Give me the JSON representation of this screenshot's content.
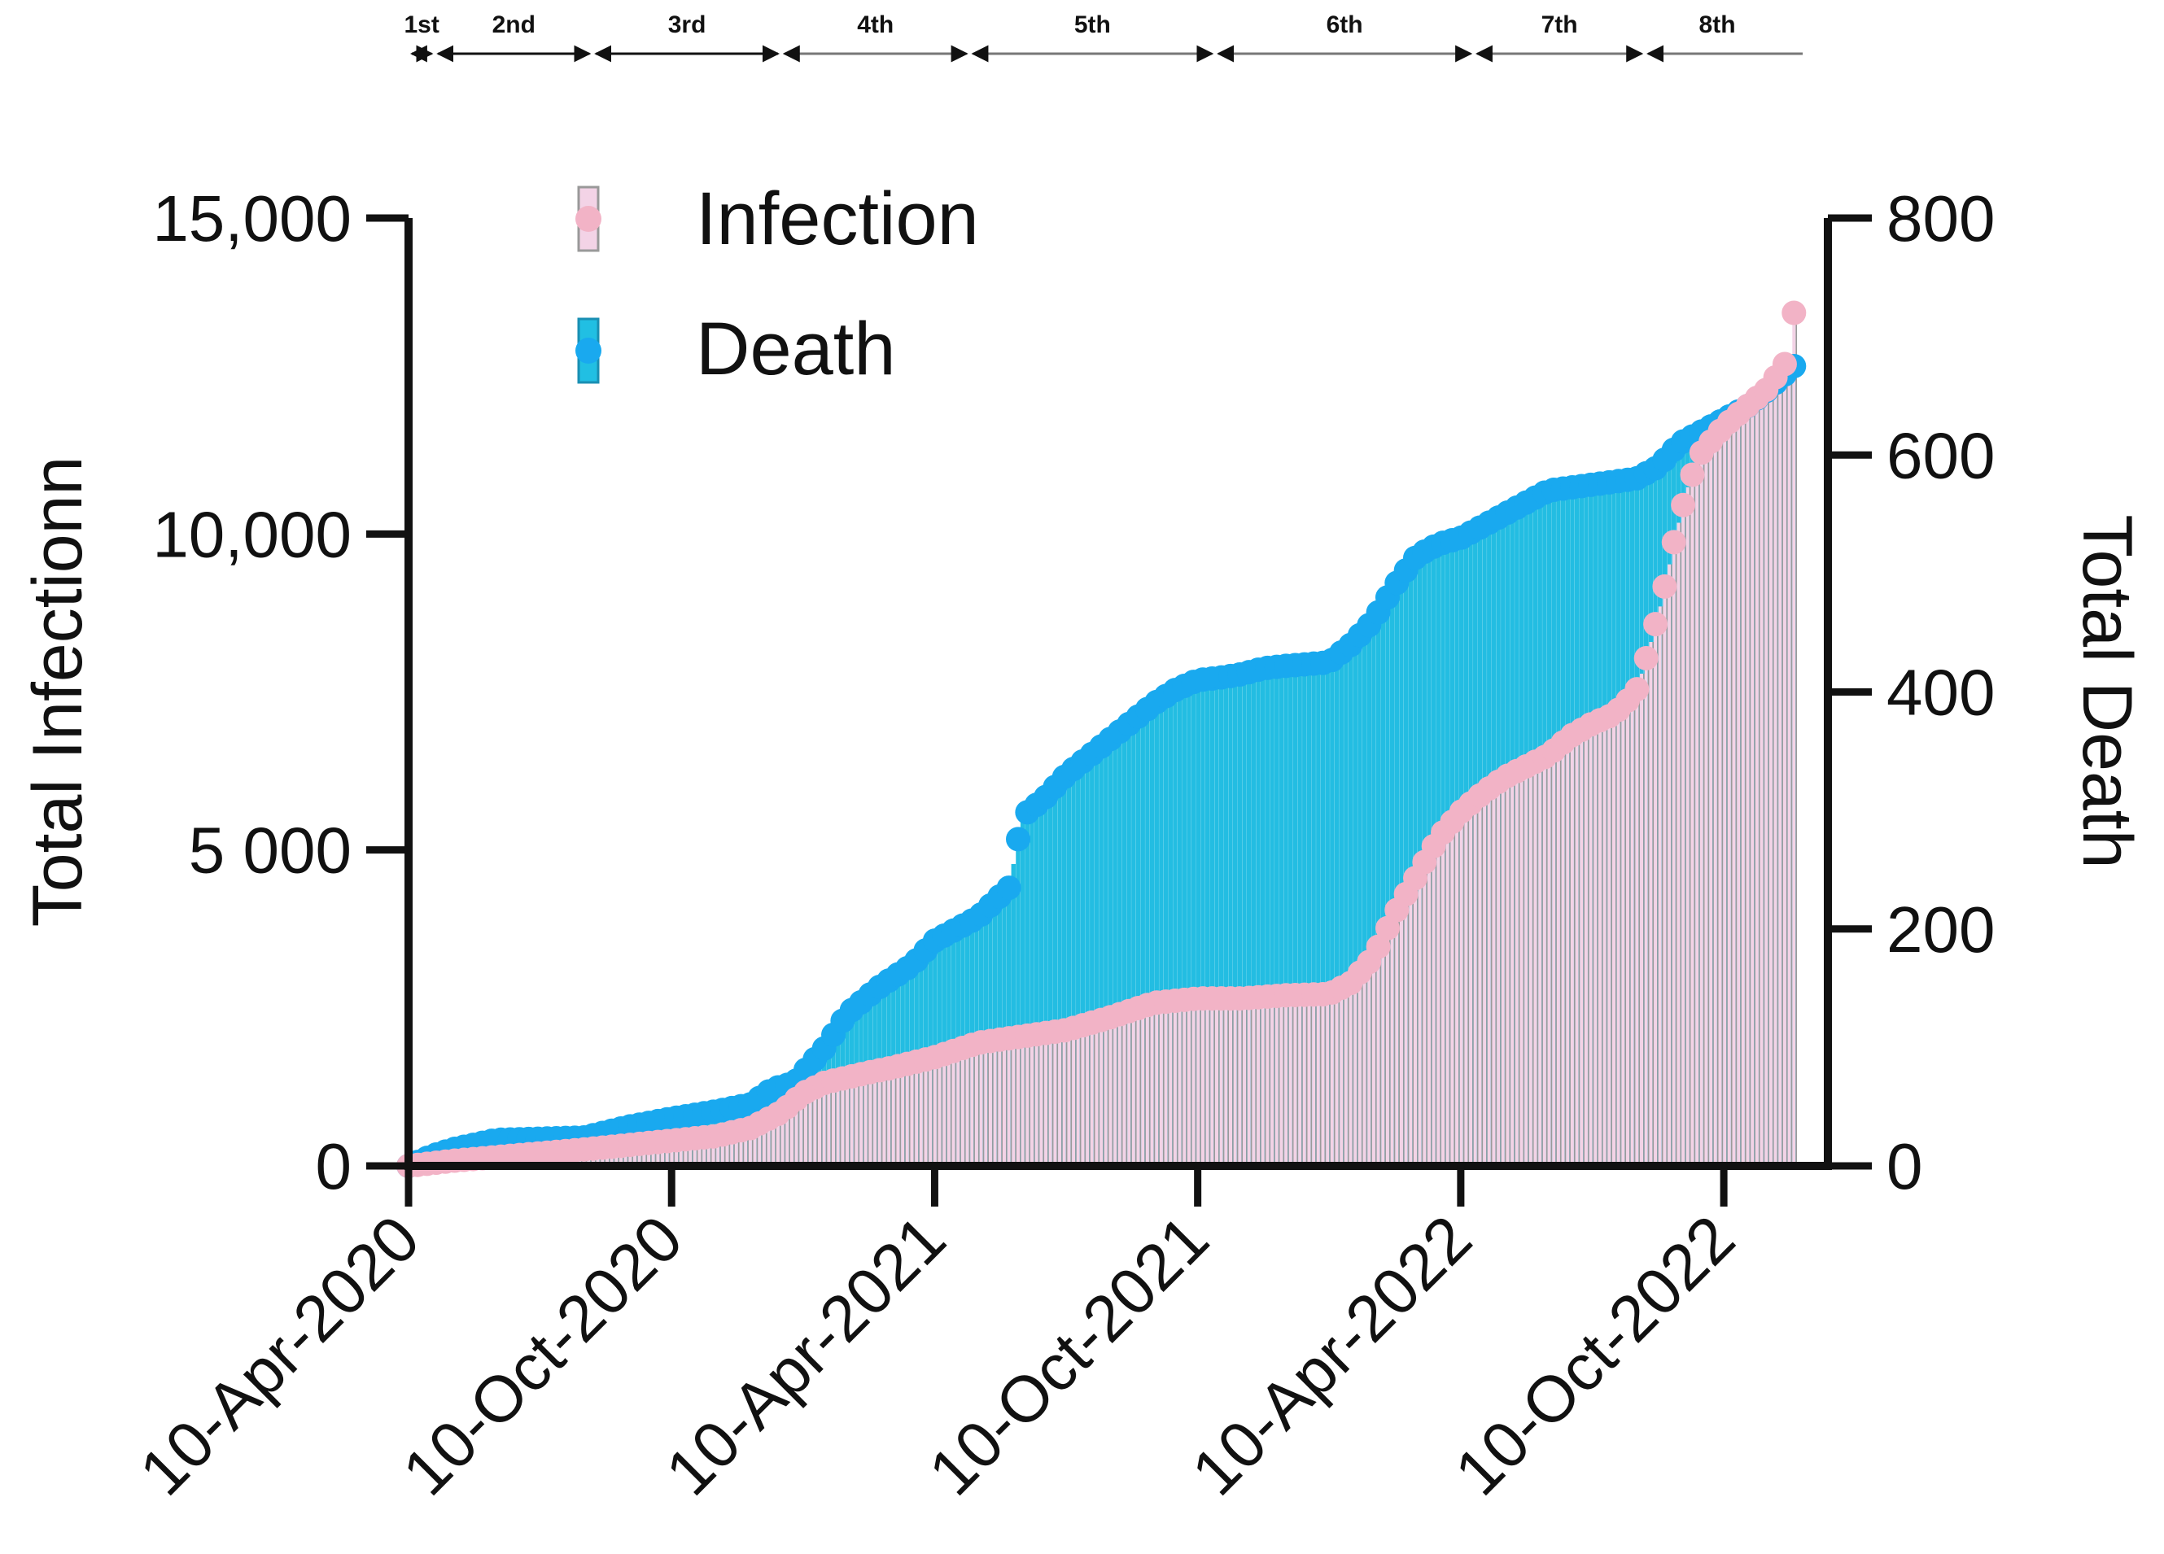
{
  "chart_data": {
    "type": "bar+scatter (dual axis, cumulative)",
    "title": "",
    "xlabel": "",
    "ylabel_left": "Total Infectionn",
    "ylabel_right": "Total Death",
    "ylim_left": [
      0,
      15000
    ],
    "ylim_right": [
      0,
      800
    ],
    "yticks_left": [
      {
        "value": 0,
        "label": "0"
      },
      {
        "value": 5000,
        "label": "5 000"
      },
      {
        "value": 10000,
        "label": "10,000"
      },
      {
        "value": 15000,
        "label": "15,000"
      }
    ],
    "yticks_right": [
      {
        "value": 0,
        "label": "0"
      },
      {
        "value": 200,
        "label": "200"
      },
      {
        "value": 400,
        "label": "400"
      },
      {
        "value": 600,
        "label": "600"
      },
      {
        "value": 800,
        "label": "800"
      }
    ],
    "xlim_months": [
      0,
      32.3
    ],
    "xticks": [
      {
        "month": 0,
        "label": "10-Apr-2020"
      },
      {
        "month": 6,
        "label": "10-Oct-2020"
      },
      {
        "month": 12,
        "label": "10-Apr-2021"
      },
      {
        "month": 18,
        "label": "10-Oct-2021"
      },
      {
        "month": 24,
        "label": "10-Apr-2022"
      },
      {
        "month": 30,
        "label": "10-Oct-2022"
      }
    ],
    "legend": {
      "position": "top-left",
      "entries": [
        {
          "label": "Infection",
          "color": "#f2b3c6",
          "fill": "#f3d3e6"
        },
        {
          "label": "Death",
          "color": "#19a9ef",
          "fill": "#21bfe3"
        }
      ]
    },
    "waves": [
      {
        "label": "1st",
        "start": 0,
        "end": 0.6
      },
      {
        "label": "2nd",
        "start": 0.6,
        "end": 4.2
      },
      {
        "label": "3rd",
        "start": 4.2,
        "end": 8.5
      },
      {
        "label": "4th",
        "start": 8.5,
        "end": 12.8
      },
      {
        "label": "5th",
        "start": 12.8,
        "end": 18.4
      },
      {
        "label": "6th",
        "start": 18.4,
        "end": 24.3
      },
      {
        "label": "7th",
        "start": 24.3,
        "end": 28.2
      },
      {
        "label": "8th",
        "start": 28.2,
        "end": 31.5
      }
    ],
    "series": [
      {
        "name": "Infection",
        "axis": "left",
        "color": "#f2b3c6",
        "points": [
          [
            0,
            0
          ],
          [
            1,
            80
          ],
          [
            2,
            140
          ],
          [
            3,
            200
          ],
          [
            4,
            260
          ],
          [
            5,
            330
          ],
          [
            6,
            400
          ],
          [
            7,
            470
          ],
          [
            7.8,
            600
          ],
          [
            8.5,
            850
          ],
          [
            9,
            1150
          ],
          [
            9.5,
            1320
          ],
          [
            10,
            1400
          ],
          [
            10.5,
            1480
          ],
          [
            11,
            1550
          ],
          [
            12,
            1720
          ],
          [
            13,
            1950
          ],
          [
            14,
            2050
          ],
          [
            15,
            2150
          ],
          [
            16,
            2350
          ],
          [
            17,
            2580
          ],
          [
            18,
            2650
          ],
          [
            19,
            2650
          ],
          [
            20,
            2700
          ],
          [
            21,
            2720
          ],
          [
            21.5,
            2900
          ],
          [
            22,
            3300
          ],
          [
            22.5,
            4000
          ],
          [
            23,
            4600
          ],
          [
            23.5,
            5200
          ],
          [
            24,
            5600
          ],
          [
            24.5,
            5900
          ],
          [
            25,
            6150
          ],
          [
            26,
            6500
          ],
          [
            26.5,
            6800
          ],
          [
            27,
            7000
          ],
          [
            27.5,
            7150
          ],
          [
            28,
            7500
          ],
          [
            28.3,
            8200
          ],
          [
            28.6,
            9000
          ],
          [
            28.9,
            10000
          ],
          [
            29.2,
            10800
          ],
          [
            29.5,
            11300
          ],
          [
            30,
            11700
          ],
          [
            30.5,
            12000
          ],
          [
            31,
            12300
          ],
          [
            31.5,
            12800
          ],
          [
            31.6,
            13500
          ]
        ]
      },
      {
        "name": "Death",
        "axis": "right",
        "color": "#19a9ef",
        "points": [
          [
            0,
            0
          ],
          [
            0.5,
            8
          ],
          [
            1,
            14
          ],
          [
            1.5,
            18
          ],
          [
            2,
            22
          ],
          [
            3,
            23
          ],
          [
            4,
            24
          ],
          [
            5,
            33
          ],
          [
            6,
            40
          ],
          [
            7,
            46
          ],
          [
            7.8,
            52
          ],
          [
            8.3,
            65
          ],
          [
            8.8,
            70
          ],
          [
            9.5,
            100
          ],
          [
            10,
            128
          ],
          [
            10.7,
            150
          ],
          [
            11.5,
            170
          ],
          [
            12,
            190
          ],
          [
            12.5,
            200
          ],
          [
            13,
            210
          ],
          [
            13.5,
            228
          ],
          [
            13.7,
            235
          ],
          [
            14,
            295
          ],
          [
            14.5,
            310
          ],
          [
            15,
            330
          ],
          [
            15.5,
            345
          ],
          [
            16,
            360
          ],
          [
            16.5,
            375
          ],
          [
            17,
            390
          ],
          [
            17.5,
            402
          ],
          [
            18,
            410
          ],
          [
            18.5,
            412
          ],
          [
            19,
            415
          ],
          [
            19.5,
            420
          ],
          [
            20,
            422
          ],
          [
            21,
            425
          ],
          [
            21.5,
            440
          ],
          [
            22,
            460
          ],
          [
            22.5,
            490
          ],
          [
            23,
            515
          ],
          [
            23.5,
            525
          ],
          [
            24,
            530
          ],
          [
            24.5,
            540
          ],
          [
            25,
            550
          ],
          [
            26,
            570
          ],
          [
            27,
            575
          ],
          [
            28,
            580
          ],
          [
            28.5,
            590
          ],
          [
            29,
            610
          ],
          [
            29.5,
            620
          ],
          [
            30,
            630
          ],
          [
            30.5,
            640
          ],
          [
            31,
            655
          ],
          [
            31.3,
            665
          ],
          [
            31.6,
            675
          ]
        ]
      }
    ]
  }
}
